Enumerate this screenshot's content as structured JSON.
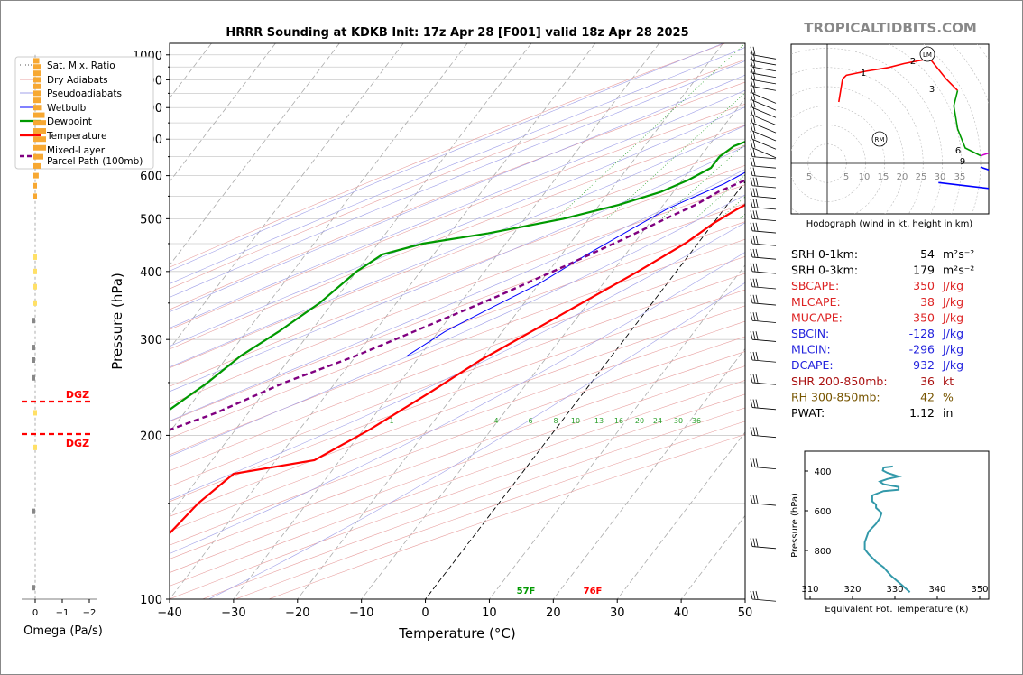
{
  "watermark": "TROPICALTIDBITS.COM",
  "chart_data": [
    {
      "type": "line",
      "title": "HRRR Sounding at KDKB Init: 17z Apr 28 [F001] valid 18z Apr 28 2025",
      "xlabel": "Temperature (°C)",
      "ylabel": "Pressure (hPa)",
      "x_ticks": [
        -40,
        -30,
        -20,
        -10,
        0,
        10,
        20,
        30,
        40,
        50
      ],
      "y_ticks": [
        100,
        200,
        300,
        400,
        500,
        600,
        700,
        800,
        900,
        1000
      ],
      "xlim": [
        -40,
        50
      ],
      "ylim": [
        1050,
        100
      ],
      "y_scale": "log",
      "skew": "skew-T",
      "grid": true,
      "legend_position": "top-left",
      "legend": [
        {
          "label": "Sat. Mix. Ratio",
          "color": "#2ca02c",
          "style": "dotted"
        },
        {
          "label": "Dry Adiabats",
          "color": "#e8a0a0",
          "style": "solid"
        },
        {
          "label": "Pseudoadiabats",
          "color": "#a0a0e8",
          "style": "solid"
        },
        {
          "label": "Wetbulb",
          "color": "#0000ff",
          "style": "solid"
        },
        {
          "label": "Dewpoint",
          "color": "#009900",
          "style": "solid"
        },
        {
          "label": "Temperature",
          "color": "#ff0000",
          "style": "solid"
        },
        {
          "label": "Mixed-Layer\nParcel Path (100mb)",
          "color": "#800080",
          "style": "dashed"
        }
      ],
      "mixing_ratio_labels": [
        "1",
        "4",
        "6",
        "8",
        "10",
        "13",
        "16",
        "20",
        "24",
        "30",
        "36"
      ],
      "surface_labels": {
        "dewpoint": "57F",
        "temperature": "76F"
      },
      "series": [
        {
          "name": "Temperature",
          "color": "#ff0000",
          "points": [
            [
              24.4,
              985
            ],
            [
              22,
              960
            ],
            [
              19,
              930
            ],
            [
              16.5,
              900
            ],
            [
              17,
              870
            ],
            [
              18.5,
              840
            ],
            [
              17.5,
              800
            ],
            [
              15,
              760
            ],
            [
              13.7,
              700
            ],
            [
              12,
              650
            ],
            [
              10,
              620
            ],
            [
              8,
              590
            ],
            [
              5,
              560
            ],
            [
              2,
              520
            ],
            [
              0,
              490
            ],
            [
              -2,
              450
            ],
            [
              -6,
              400
            ],
            [
              -11,
              350
            ],
            [
              -15.5,
              310
            ],
            [
              -20,
              275
            ],
            [
              -24,
              240
            ],
            [
              -29,
              205
            ],
            [
              -34,
              180
            ],
            [
              -45,
              170
            ],
            [
              -47,
              150
            ],
            [
              -48,
              130
            ],
            [
              -51,
              110
            ],
            [
              -54,
              100
            ]
          ]
        },
        {
          "name": "Dewpoint",
          "color": "#009900",
          "points": [
            [
              14,
              985
            ],
            [
              13.2,
              960
            ],
            [
              13,
              930
            ],
            [
              12.5,
              900
            ],
            [
              10,
              870
            ],
            [
              6,
              840
            ],
            [
              5,
              800
            ],
            [
              5.5,
              760
            ],
            [
              3,
              720
            ],
            [
              -4,
              700
            ],
            [
              -6,
              680
            ],
            [
              -7,
              650
            ],
            [
              -7,
              620
            ],
            [
              -9,
              590
            ],
            [
              -12,
              560
            ],
            [
              -17,
              530
            ],
            [
              -24,
              500
            ],
            [
              -34,
              470
            ],
            [
              -43,
              450
            ],
            [
              -48,
              430
            ],
            [
              -50,
              400
            ],
            [
              -52,
              350
            ],
            [
              -55,
              310
            ],
            [
              -58,
              280
            ],
            [
              -60,
              250
            ],
            [
              -63,
              220
            ],
            [
              -66,
              200
            ],
            [
              -72,
              170
            ],
            [
              -76,
              150
            ],
            [
              -80,
              130
            ],
            [
              -83,
              115
            ],
            [
              -85,
              100
            ]
          ]
        },
        {
          "name": "Wetbulb",
          "color": "#0000ff",
          "points": [
            [
              17.5,
              985
            ],
            [
              16.5,
              960
            ],
            [
              15.5,
              930
            ],
            [
              14.5,
              900
            ],
            [
              13,
              870
            ],
            [
              11,
              840
            ],
            [
              9.5,
              800
            ],
            [
              8,
              760
            ],
            [
              6,
              720
            ],
            [
              3,
              700
            ],
            [
              2,
              670
            ],
            [
              1,
              640
            ],
            [
              -1,
              610
            ],
            [
              -3,
              580
            ],
            [
              -7,
              540
            ],
            [
              -9,
              520
            ],
            [
              -12,
              480
            ],
            [
              -16,
              430
            ],
            [
              -20,
              380
            ],
            [
              -25,
              340
            ],
            [
              -29,
              310
            ],
            [
              -32,
              280
            ]
          ]
        },
        {
          "name": "Mixed-Layer Parcel Path (100mb)",
          "color": "#800080",
          "dashed": true,
          "points": [
            [
              16,
              900
            ],
            [
              13.5,
              850
            ],
            [
              11,
              800
            ],
            [
              9,
              760
            ],
            [
              7.5,
              720
            ],
            [
              6,
              690
            ],
            [
              4,
              650
            ],
            [
              2,
              620
            ],
            [
              0,
              590
            ],
            [
              -3,
              560
            ],
            [
              -5,
              530
            ],
            [
              -8,
              500
            ],
            [
              -12,
              460
            ],
            [
              -18,
              410
            ],
            [
              -25,
              360
            ],
            [
              -32,
              320
            ],
            [
              -40,
              280
            ],
            [
              -48,
              250
            ],
            [
              -55,
              220
            ],
            [
              -62,
              200
            ],
            [
              -70,
              175
            ],
            [
              -78,
              155
            ],
            [
              -86,
              140
            ],
            [
              -96,
              120
            ],
            [
              -103,
              110
            ]
          ]
        }
      ]
    },
    {
      "type": "line",
      "title": "Hodograph (wind in kt, height in km)",
      "ring_labels": [
        "5",
        "5",
        "10",
        "15",
        "20",
        "25",
        "30",
        "35"
      ],
      "markers": [
        "LM",
        "RM"
      ],
      "height_labels": [
        "1",
        "2",
        "3",
        "6",
        "9"
      ],
      "segments": [
        {
          "color": "#ff0000",
          "points": [
            [
              3,
              16
            ],
            [
              4,
              22
            ],
            [
              5,
              23
            ],
            [
              10,
              24
            ],
            [
              16,
              25
            ],
            [
              20,
              26
            ],
            [
              25,
              27
            ],
            [
              27,
              27
            ],
            [
              31,
              22
            ],
            [
              34,
              19
            ]
          ]
        },
        {
          "color": "#009900",
          "points": [
            [
              34,
              19
            ],
            [
              33,
              15
            ],
            [
              34,
              9
            ],
            [
              36,
              4
            ],
            [
              40,
              2
            ]
          ]
        },
        {
          "color": "#cc00cc",
          "points": [
            [
              40,
              2
            ],
            [
              43,
              3
            ],
            [
              44,
              4
            ],
            [
              45,
              1
            ],
            [
              45,
              0
            ]
          ]
        },
        {
          "color": "#0000ff",
          "points": [
            [
              40,
              -1
            ],
            [
              43,
              -2
            ],
            [
              45,
              -4
            ],
            [
              46,
              -7
            ],
            [
              29,
              -5
            ]
          ]
        }
      ]
    },
    {
      "type": "bar",
      "xlabel": "Omega (Pa/s)",
      "x_ticks": [
        "0",
        "−1",
        "−2"
      ],
      "dgz_label": "DGZ",
      "orientation": "horizontal",
      "bars": [
        {
          "p": 975,
          "v": -0.15
        },
        {
          "p": 950,
          "v": -0.22
        },
        {
          "p": 925,
          "v": -0.22
        },
        {
          "p": 900,
          "v": -0.22
        },
        {
          "p": 875,
          "v": -0.22
        },
        {
          "p": 850,
          "v": -0.22
        },
        {
          "p": 825,
          "v": -0.22
        },
        {
          "p": 800,
          "v": -0.25
        },
        {
          "p": 775,
          "v": -0.35
        },
        {
          "p": 750,
          "v": -0.4
        },
        {
          "p": 725,
          "v": -0.4
        },
        {
          "p": 700,
          "v": -0.4
        },
        {
          "p": 675,
          "v": -0.4
        },
        {
          "p": 650,
          "v": -0.3
        },
        {
          "p": 625,
          "v": -0.2
        },
        {
          "p": 600,
          "v": -0.13
        },
        {
          "p": 575,
          "v": -0.05
        },
        {
          "p": 550,
          "v": -0.02
        },
        {
          "p": 425,
          "v": -0.02
        },
        {
          "p": 400,
          "v": -0.02
        },
        {
          "p": 375,
          "v": -0.02
        },
        {
          "p": 350,
          "v": -0.02
        },
        {
          "p": 325,
          "v": 0.06
        },
        {
          "p": 290,
          "v": 0.06
        },
        {
          "p": 275,
          "v": 0.06
        },
        {
          "p": 255,
          "v": 0.06
        },
        {
          "p": 220,
          "v": -0.02
        },
        {
          "p": 190,
          "v": -0.02
        },
        {
          "p": 145,
          "v": 0.02
        },
        {
          "p": 105,
          "v": 0.02
        }
      ]
    },
    {
      "type": "line",
      "xlabel": "Equivalent Pot. Temperature (K)",
      "ylabel": "Pressure (hPa)",
      "x_ticks": [
        "310",
        "320",
        "330",
        "340",
        "350"
      ],
      "y_ticks": [
        "400",
        "600",
        "800"
      ],
      "xlim": [
        310,
        350
      ],
      "ylim": [
        1000,
        300
      ],
      "series": [
        {
          "color": "#3399aa",
          "points": [
            [
              327.5,
              985
            ],
            [
              325,
              975
            ],
            [
              324.8,
              950
            ],
            [
              326,
              930
            ],
            [
              329,
              900
            ],
            [
              326,
              880
            ],
            [
              324,
              860
            ],
            [
              325,
              840
            ],
            [
              329,
              820
            ],
            [
              329,
              800
            ],
            [
              325,
              790
            ],
            [
              322,
              760
            ],
            [
              322,
              720
            ],
            [
              323,
              700
            ],
            [
              323,
              680
            ],
            [
              324.5,
              650
            ],
            [
              324,
              620
            ],
            [
              323,
              590
            ],
            [
              321,
              550
            ],
            [
              320,
              500
            ],
            [
              320,
              470
            ],
            [
              321,
              450
            ],
            [
              323,
              420
            ],
            [
              325,
              400
            ],
            [
              327,
              370
            ],
            [
              330,
              340
            ],
            [
              332,
              320
            ]
          ]
        }
      ]
    }
  ],
  "stats": [
    {
      "label": "SRH 0-1km:",
      "value": "54",
      "unit": "m²s⁻²",
      "color": "#000000"
    },
    {
      "label": "SRH 0-3km:",
      "value": "179",
      "unit": "m²s⁻²",
      "color": "#000000"
    },
    {
      "label": "SBCAPE:",
      "value": "350",
      "unit": "J/kg",
      "color": "#dd2222"
    },
    {
      "label": "MLCAPE:",
      "value": "38",
      "unit": "J/kg",
      "color": "#dd2222"
    },
    {
      "label": "MUCAPE:",
      "value": "350",
      "unit": "J/kg",
      "color": "#dd2222"
    },
    {
      "label": "SBCIN:",
      "value": "-128",
      "unit": "J/kg",
      "color": "#2222dd"
    },
    {
      "label": "MLCIN:",
      "value": "-296",
      "unit": "J/kg",
      "color": "#2222dd"
    },
    {
      "label": "DCAPE:",
      "value": "932",
      "unit": "J/kg",
      "color": "#2222dd"
    },
    {
      "label": "SHR 200-850mb:",
      "value": "36",
      "unit": "kt",
      "color": "#aa1111"
    },
    {
      "label": "RH 300-850mb:",
      "value": "42",
      "unit": "%",
      "color": "#775500"
    },
    {
      "label": "PWAT:",
      "value": "1.12",
      "unit": "in",
      "color": "#000000"
    }
  ]
}
